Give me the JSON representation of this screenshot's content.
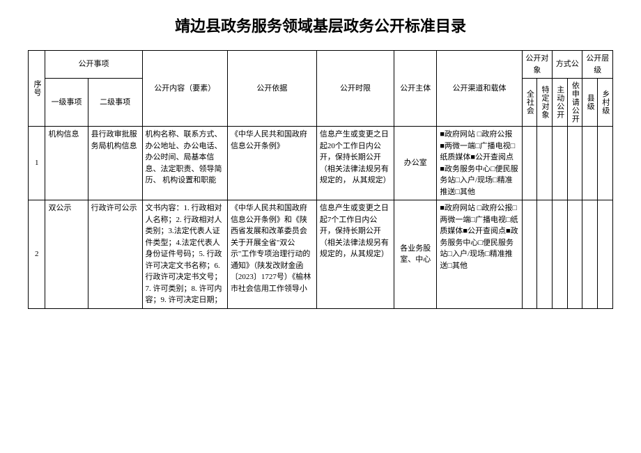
{
  "title": "靖边县政务服务领域基层政务公开标准目录",
  "headers": {
    "seq": "序号",
    "matter": "公开事项",
    "matter_l1": "一级事项",
    "matter_l2": "二级事项",
    "content": "公开内容（要素）",
    "basis": "公开依据",
    "timelimit": "公开时限",
    "subject": "公开主体",
    "channel": "公开渠道和载体",
    "target": "公开对象",
    "method": "方式公",
    "level": "公开层级",
    "target_all": "全社会",
    "target_spec": "特定对象",
    "method_active": "主动公开",
    "method_apply": "依申请公开",
    "level_county": "县级",
    "level_village": "乡村级"
  },
  "rows": [
    {
      "seq": "1",
      "l1": "机构信息",
      "l2": "县行政审批服务局机构信息",
      "content": "机构名称、联系方式、办公地址、办公电话、办公时间、局基本信息、法定职责、领导简历、\n机构设置和职能",
      "basis": "《中华人民共和国政府信息公开条例》",
      "timelimit": "信息产生或变更之日起20个工作日内公开，保持长期公开（相关法律法规另有规定的，\n从其规定）",
      "subject": "办公室",
      "channel": "■政府网站\n□政府公报\n■两微一端□广播电视□纸质媒体■公开查阅点\n■政务服务中心□便民服务站□入户/现场□精准推送□其他"
    },
    {
      "seq": "2",
      "l1": "双公示",
      "l2": "行政许可公示",
      "content": "文书内容：1. 行政相对人名称；2. 行政相对人类别；3.法定代表人证件类型；4.法定代表人身份证件号码；5. 行政许可决定文书名称；6. 行政许可决定书文号；7. 许可类别；8. 许可内容；9. 许可决定日期；",
      "basis": "《中华人民共和国政府信息公开条例》和《陕西省发展和改革委员会关于开展全省\"双公示\"工作专项治理行动的通知》（陕发改财金函〔2023〕1727号）《榆林市社会信用工作领导小",
      "timelimit": "信息产生或变更之日起7个工作日内公开，保持长期公开（相关法律法规另有规定的，从其规定）",
      "subject": "各业务股室、中心",
      "channel": "■政府网站\n□政府公报□两微一端□广播电视□纸质媒体■公开查阅点■政务服务中心□便民服务站□入户/现场□精准推送□其他"
    }
  ]
}
